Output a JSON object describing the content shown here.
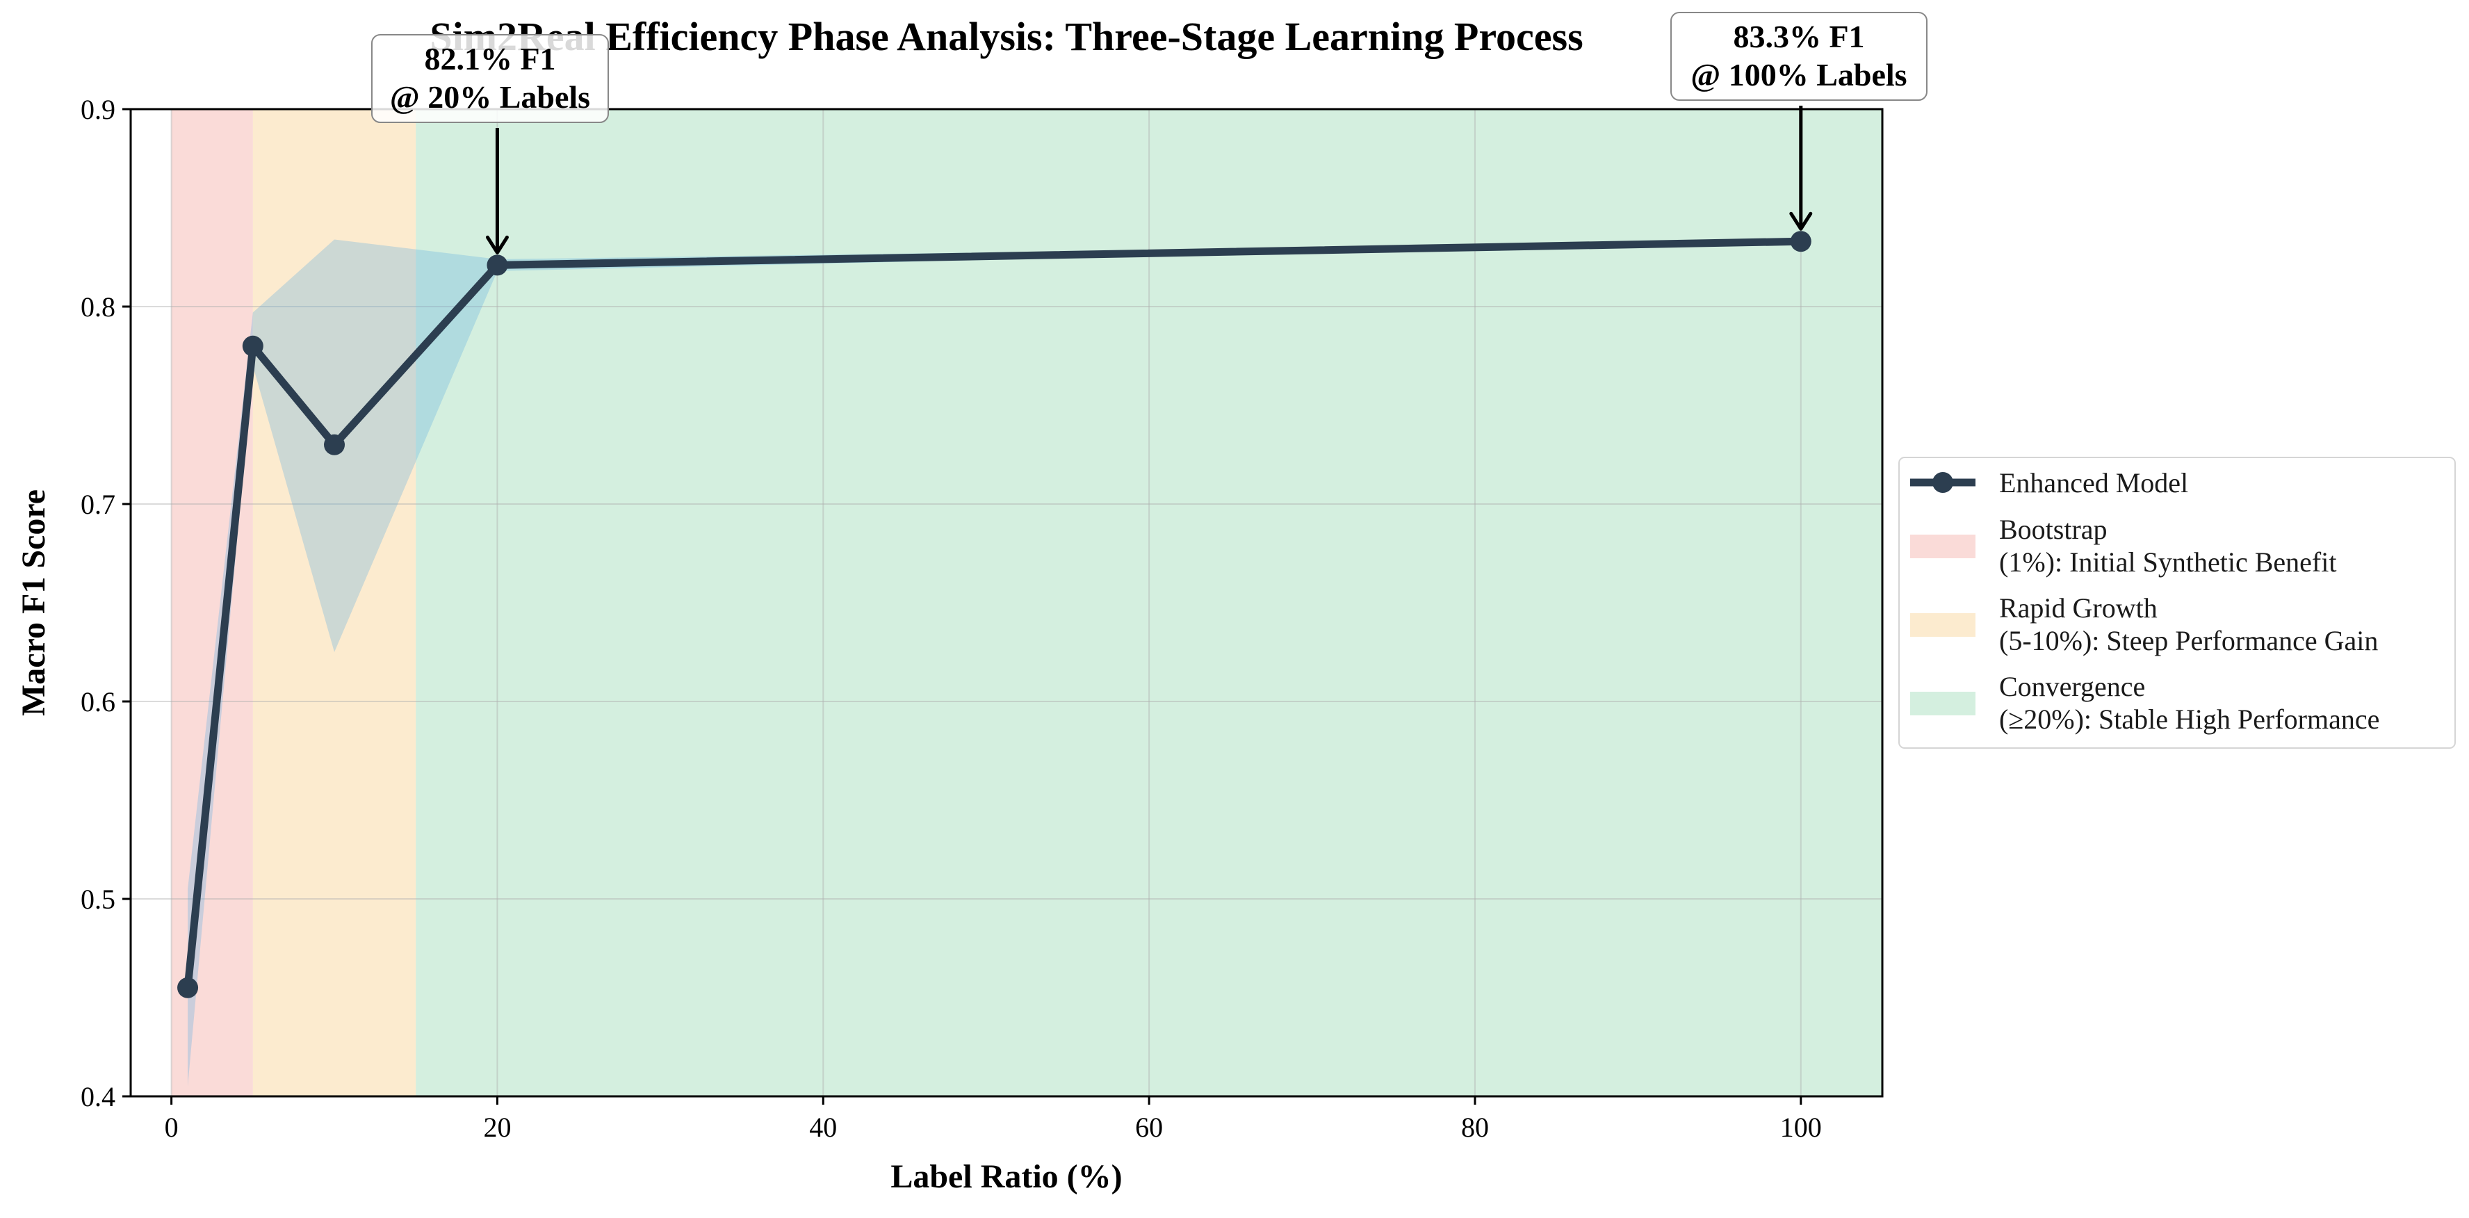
{
  "chart_data": {
    "type": "line",
    "title": "Sim2Real Efficiency Phase Analysis: Three-Stage Learning Process",
    "xlabel": "Label Ratio (%)",
    "ylabel": "Macro F1 Score",
    "xlim": [
      -2.5,
      105
    ],
    "ylim": [
      0.4,
      0.9
    ],
    "xticks": [
      0,
      20,
      40,
      60,
      80,
      100
    ],
    "yticks": [
      0.4,
      0.5,
      0.6,
      0.7,
      0.8,
      0.9
    ],
    "xtick_labels": [
      "0",
      "20",
      "40",
      "60",
      "80",
      "100"
    ],
    "ytick_labels": [
      "0.4",
      "0.5",
      "0.6",
      "0.7",
      "0.8",
      "0.9"
    ],
    "grid": true,
    "legend_position": "right-outside",
    "series": [
      {
        "name": "Enhanced Model",
        "color": "#2c3e50",
        "x": [
          1,
          5,
          10,
          20,
          100
        ],
        "y": [
          0.455,
          0.78,
          0.73,
          0.821,
          0.833
        ],
        "band_lower": [
          0.405,
          0.77,
          0.625,
          0.818,
          0.833
        ],
        "band_upper": [
          0.505,
          0.797,
          0.834,
          0.824,
          0.833
        ]
      }
    ],
    "phases": [
      {
        "label_line1": "Bootstrap",
        "label_line2": "(1%): Initial Synthetic Benefit",
        "x_start": 0,
        "x_end": 5,
        "color": "#f5b7b1"
      },
      {
        "label_line1": "Rapid Growth",
        "label_line2": "(5-10%): Steep Performance Gain",
        "x_start": 5,
        "x_end": 15,
        "color": "#fad7a0"
      },
      {
        "label_line1": "Convergence",
        "label_line2": "(≥20%): Stable High Performance",
        "x_start": 15,
        "x_end": 105,
        "color": "#a9dfbf"
      }
    ],
    "annotations": [
      {
        "line1": "82.1% F1",
        "line2": "@ 20% Labels",
        "x": 20,
        "y": 0.821
      },
      {
        "line1": "83.3% F1",
        "line2": "@ 100% Labels",
        "x": 100,
        "y": 0.833
      }
    ]
  }
}
